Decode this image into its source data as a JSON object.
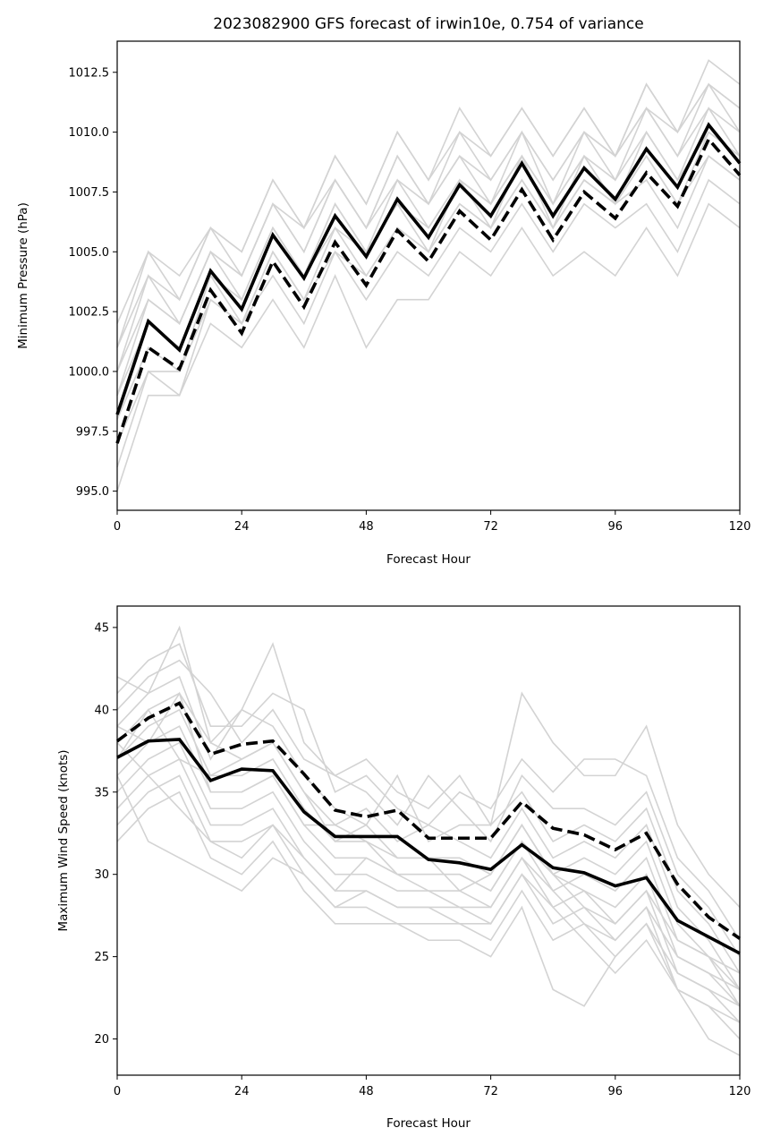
{
  "chart_data": [
    {
      "type": "line",
      "title": "2023082900 GFS forecast of irwin10e, 0.754 of variance",
      "xlabel": "Forecast Hour",
      "ylabel": "Minimum Pressure (hPa)",
      "xlim": [
        0,
        120
      ],
      "ylim": [
        994.2,
        1013.8
      ],
      "xticks": [
        0,
        24,
        48,
        72,
        96,
        120
      ],
      "yticks": [
        995.0,
        997.5,
        1000.0,
        1002.5,
        1005.0,
        1007.5,
        1010.0,
        1012.5
      ],
      "ytick_decimals": 1,
      "grid": false,
      "x": [
        0,
        6,
        12,
        18,
        24,
        30,
        36,
        42,
        48,
        54,
        60,
        66,
        72,
        78,
        84,
        90,
        96,
        102,
        108,
        114,
        120
      ],
      "ensemble_color": "#d3d3d3",
      "highlight_color": "#000000",
      "ensemble": [
        [
          995,
          999,
          999,
          1002,
          1001,
          1003,
          1001,
          1004,
          1001,
          1003,
          1003,
          1005,
          1004,
          1006,
          1004,
          1005,
          1004,
          1006,
          1004,
          1007,
          1006
        ],
        [
          996,
          1000,
          999,
          1003,
          1002,
          1004,
          1002,
          1005,
          1003,
          1005,
          1004,
          1006,
          1005,
          1007,
          1005,
          1007,
          1006,
          1007,
          1005,
          1008,
          1007
        ],
        [
          997,
          1000,
          1000,
          1003,
          1002,
          1005,
          1003,
          1005,
          1004,
          1006,
          1005,
          1007,
          1006,
          1008,
          1006,
          1008,
          1007,
          1008,
          1006,
          1009,
          1008
        ],
        [
          998,
          1001,
          1000,
          1004,
          1002,
          1005,
          1003,
          1006,
          1004,
          1006,
          1005,
          1007,
          1006,
          1008,
          1006,
          1008,
          1007,
          1009,
          1007,
          1009,
          1008
        ],
        [
          998,
          1002,
          1001,
          1004,
          1003,
          1006,
          1004,
          1006,
          1005,
          1007,
          1005,
          1008,
          1006,
          1009,
          1006,
          1009,
          1007,
          1009,
          1007,
          1010,
          1009
        ],
        [
          999,
          1002,
          1001,
          1004,
          1003,
          1006,
          1004,
          1007,
          1005,
          1007,
          1006,
          1008,
          1007,
          1009,
          1007,
          1009,
          1007,
          1010,
          1008,
          1010,
          1009
        ],
        [
          999,
          1003,
          1002,
          1005,
          1003,
          1006,
          1004,
          1007,
          1005,
          1008,
          1006,
          1008,
          1007,
          1009,
          1007,
          1009,
          1008,
          1010,
          1008,
          1011,
          1009
        ],
        [
          1000,
          1003,
          1002,
          1005,
          1004,
          1007,
          1005,
          1008,
          1006,
          1008,
          1007,
          1009,
          1007,
          1010,
          1007,
          1010,
          1008,
          1011,
          1009,
          1011,
          1010
        ],
        [
          1000,
          1004,
          1002,
          1005,
          1004,
          1007,
          1005,
          1008,
          1006,
          1009,
          1007,
          1009,
          1008,
          1010,
          1008,
          1010,
          1009,
          1011,
          1009,
          1012,
          1010
        ],
        [
          1001,
          1004,
          1003,
          1006,
          1004,
          1007,
          1006,
          1008,
          1006,
          1009,
          1007,
          1010,
          1008,
          1010,
          1008,
          1010,
          1009,
          1011,
          1010,
          1012,
          1011
        ],
        [
          1001,
          1005,
          1003,
          1006,
          1005,
          1008,
          1006,
          1009,
          1007,
          1010,
          1008,
          1010,
          1009,
          1011,
          1009,
          1011,
          1009,
          1012,
          1010,
          1012,
          1011
        ],
        [
          1002,
          1005,
          1004,
          1006,
          1005,
          1008,
          1006,
          1009,
          1007,
          1010,
          1008,
          1011,
          1009,
          1011,
          1009,
          1011,
          1009,
          1012,
          1010,
          1013,
          1012
        ]
      ],
      "mean_series": [
        998.2,
        1002.1,
        1000.9,
        1004.2,
        1002.6,
        1005.7,
        1003.9,
        1006.5,
        1004.8,
        1007.2,
        1005.6,
        1007.8,
        1006.5,
        1008.7,
        1006.5,
        1008.5,
        1007.2,
        1009.3,
        1007.7,
        1010.3,
        1008.7
      ],
      "dashed_series": [
        997.0,
        1001.0,
        1000.1,
        1003.4,
        1001.6,
        1004.6,
        1002.7,
        1005.4,
        1003.6,
        1005.9,
        1004.6,
        1006.7,
        1005.5,
        1007.6,
        1005.5,
        1007.5,
        1006.4,
        1008.3,
        1006.9,
        1009.7,
        1008.2
      ]
    },
    {
      "type": "line",
      "title": "",
      "xlabel": "Forecast Hour",
      "ylabel": "Maximum Wind Speed (knots)",
      "xlim": [
        0,
        120
      ],
      "ylim": [
        17.8,
        46.3
      ],
      "xticks": [
        0,
        24,
        48,
        72,
        96,
        120
      ],
      "yticks": [
        20,
        25,
        30,
        35,
        40,
        45
      ],
      "ytick_decimals": 0,
      "grid": false,
      "x": [
        0,
        6,
        12,
        18,
        24,
        30,
        36,
        42,
        48,
        54,
        60,
        66,
        72,
        78,
        84,
        90,
        96,
        102,
        108,
        114,
        120
      ],
      "ensemble_color": "#d3d3d3",
      "highlight_color": "#000000",
      "ensemble": [
        [
          42,
          41,
          45,
          38,
          40,
          44,
          38,
          36,
          37,
          35,
          34,
          36,
          33,
          41,
          38,
          36,
          36,
          39,
          33,
          30,
          28
        ],
        [
          41,
          43,
          44,
          39,
          39,
          41,
          40,
          35,
          36,
          34,
          33,
          35,
          34,
          37,
          35,
          37,
          37,
          36,
          31,
          29,
          26
        ],
        [
          40,
          42,
          43,
          41,
          38,
          40,
          37,
          36,
          35,
          33,
          36,
          34,
          32,
          36,
          34,
          34,
          33,
          35,
          30,
          28,
          25
        ],
        [
          39,
          41,
          42,
          37,
          40,
          39,
          36,
          34,
          33,
          36,
          32,
          33,
          33,
          35,
          32,
          33,
          32,
          34,
          29,
          27,
          24
        ],
        [
          38,
          40,
          41,
          38,
          37,
          38,
          35,
          33,
          34,
          32,
          33,
          32,
          31,
          34,
          31,
          32,
          31,
          33,
          28,
          26,
          23
        ],
        [
          37,
          39,
          40,
          36,
          36,
          37,
          34,
          32,
          32,
          31,
          31,
          31,
          30,
          33,
          30,
          31,
          30,
          32,
          27,
          25,
          23
        ],
        [
          36,
          38,
          39,
          35,
          35,
          36,
          33,
          31,
          31,
          30,
          30,
          30,
          29,
          32,
          29,
          30,
          29,
          31,
          26,
          25,
          22
        ],
        [
          35,
          37,
          38,
          34,
          34,
          35,
          32,
          30,
          30,
          29,
          29,
          29,
          28,
          31,
          28,
          29,
          28,
          30,
          25,
          24,
          22
        ],
        [
          34,
          36,
          37,
          33,
          33,
          34,
          31,
          29,
          29,
          28,
          28,
          28,
          27,
          30,
          27,
          28,
          27,
          29,
          24,
          23,
          21
        ],
        [
          33,
          35,
          36,
          32,
          32,
          33,
          30,
          28,
          28,
          27,
          27,
          27,
          26,
          29,
          26,
          27,
          26,
          28,
          23,
          22,
          20
        ],
        [
          32,
          34,
          35,
          31,
          30,
          32,
          29,
          27,
          27,
          27,
          26,
          26,
          25,
          28,
          23,
          22,
          25,
          27,
          23,
          20,
          19
        ],
        [
          36,
          32,
          31,
          30,
          29,
          31,
          30,
          28,
          29,
          28,
          28,
          27,
          27,
          30,
          28,
          26,
          24,
          26,
          23,
          22,
          21
        ],
        [
          38,
          36,
          34,
          32,
          31,
          33,
          31,
          29,
          31,
          30,
          29,
          28,
          28,
          31,
          29,
          27,
          25,
          27,
          24,
          23,
          22
        ],
        [
          39,
          38,
          41,
          35,
          35,
          36,
          33,
          33,
          32,
          30,
          30,
          30,
          29,
          32,
          30,
          28,
          26,
          28,
          25,
          24,
          23
        ],
        [
          37,
          40,
          37,
          36,
          37,
          38,
          35,
          32,
          33,
          31,
          31,
          29,
          30,
          33,
          30,
          29,
          27,
          29,
          26,
          25,
          24
        ]
      ],
      "mean_series": [
        37.1,
        38.1,
        38.2,
        35.7,
        36.4,
        36.3,
        33.8,
        32.3,
        32.3,
        32.3,
        30.9,
        30.7,
        30.3,
        31.8,
        30.4,
        30.1,
        29.3,
        29.8,
        27.2,
        26.2,
        25.2
      ],
      "dashed_series": [
        38.1,
        39.5,
        40.4,
        37.3,
        37.9,
        38.1,
        36.1,
        33.9,
        33.5,
        33.9,
        32.2,
        32.2,
        32.2,
        34.4,
        32.8,
        32.4,
        31.5,
        32.5,
        29.4,
        27.4,
        26.1
      ]
    }
  ]
}
